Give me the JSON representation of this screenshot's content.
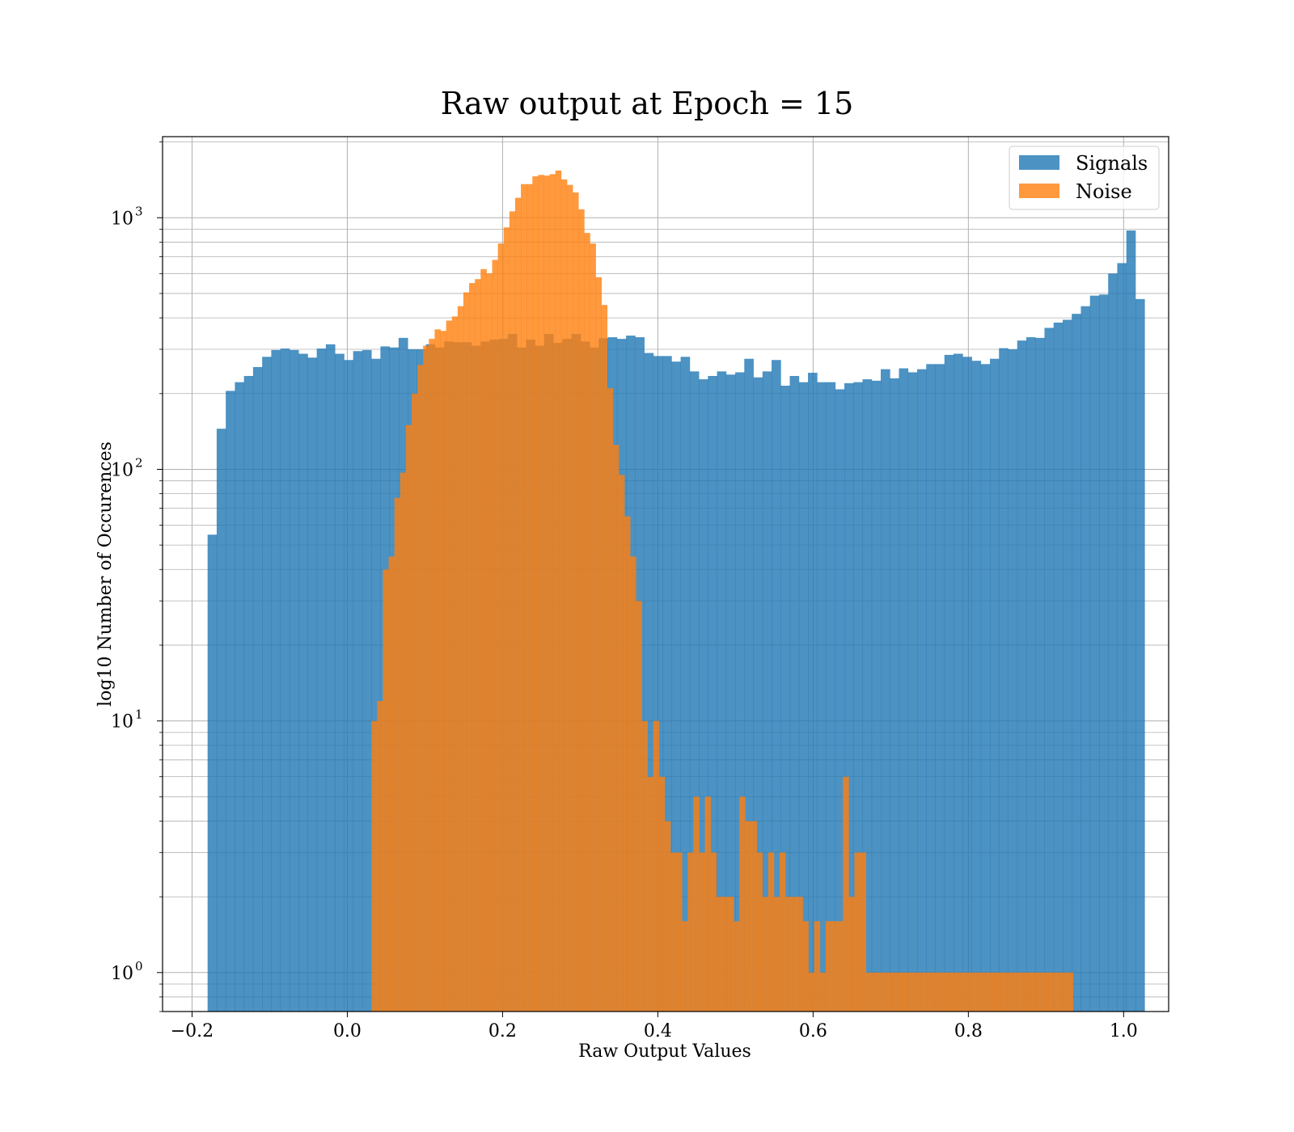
{
  "chart_data": {
    "type": "histogram",
    "title": "Raw output at Epoch = 15",
    "xlabel": "Raw Output Values",
    "ylabel": "log10 Number of Occurences",
    "xlim": [
      -0.238,
      1.058
    ],
    "ylim": [
      0.7,
      2100
    ],
    "yscale": "log",
    "grid": true,
    "legend_position": "top-right",
    "x_ticks": [
      -0.2,
      0.0,
      0.2,
      0.4,
      0.6,
      0.8,
      1.0
    ],
    "x_tick_labels": [
      "−0.2",
      "0.0",
      "0.2",
      "0.4",
      "0.6",
      "0.8",
      "1.0"
    ],
    "y_ticks": [
      {
        "value": 1,
        "base": "10",
        "exp": "0"
      },
      {
        "value": 10,
        "base": "10",
        "exp": "1"
      },
      {
        "value": 100,
        "base": "10",
        "exp": "2"
      },
      {
        "value": 1000,
        "base": "10",
        "exp": "3"
      }
    ],
    "series": [
      {
        "name": "Signals",
        "color": "#1f77b4",
        "bin_start": -0.18,
        "bin_width": 0.011718,
        "counts": [
          55,
          145,
          205,
          222,
          235,
          255,
          280,
          298,
          302,
          298,
          288,
          278,
          302,
          314,
          288,
          272,
          295,
          298,
          275,
          308,
          305,
          333,
          300,
          300,
          314,
          305,
          322,
          320,
          320,
          310,
          322,
          328,
          330,
          345,
          305,
          328,
          310,
          345,
          318,
          330,
          345,
          322,
          305,
          332,
          335,
          330,
          340,
          335,
          290,
          282,
          282,
          268,
          280,
          245,
          228,
          235,
          245,
          238,
          243,
          275,
          232,
          245,
          272,
          215,
          235,
          222,
          242,
          222,
          222,
          208,
          220,
          222,
          228,
          225,
          250,
          230,
          252,
          243,
          250,
          262,
          262,
          285,
          288,
          280,
          270,
          262,
          275,
          303,
          300,
          325,
          335,
          333,
          365,
          383,
          393,
          415,
          445,
          490,
          495,
          600,
          660,
          890,
          475
        ]
      },
      {
        "name": "Noise",
        "color": "#ff7f0e",
        "bin_start": 0.031,
        "bin_width": 0.007407,
        "counts": [
          10,
          12,
          40,
          45,
          77,
          97,
          150,
          200,
          260,
          310,
          330,
          360,
          355,
          390,
          405,
          445,
          505,
          550,
          570,
          625,
          600,
          680,
          790,
          915,
          1060,
          1200,
          1360,
          1360,
          1460,
          1480,
          1470,
          1490,
          1540,
          1420,
          1350,
          1260,
          1080,
          870,
          790,
          580,
          450,
          210,
          125,
          95,
          65,
          45,
          30,
          10,
          6,
          10,
          6,
          4,
          3,
          3,
          1.6,
          3,
          5,
          3,
          5,
          3,
          2,
          2,
          2,
          1.6,
          5,
          4,
          4,
          3,
          2,
          3,
          2,
          3,
          2,
          2,
          2,
          1.6,
          1,
          1.6,
          1,
          1.6,
          1.6,
          1.6,
          6,
          2,
          3,
          3,
          1,
          1,
          1,
          1,
          1,
          1,
          1,
          1,
          1,
          1,
          1,
          1,
          1,
          1,
          1,
          1,
          1,
          1,
          1,
          1,
          1,
          1,
          1,
          1,
          1,
          1,
          1,
          1,
          1,
          1,
          1,
          1,
          1,
          1,
          1,
          1
        ]
      }
    ]
  }
}
